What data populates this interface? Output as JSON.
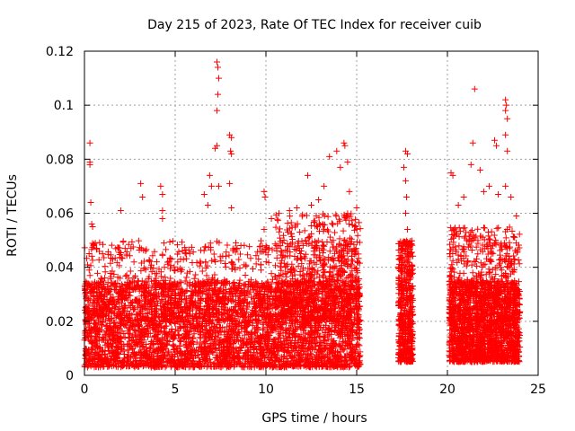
{
  "chart_data": {
    "type": "scatter",
    "title": "Day 215 of 2023, Rate Of TEC Index for receiver cuib",
    "xlabel": "GPS time / hours",
    "ylabel": "ROTI / TECUs",
    "xlim": [
      0,
      25
    ],
    "ylim": [
      0,
      0.12
    ],
    "x_ticks": [
      0,
      5,
      10,
      15,
      20,
      25
    ],
    "y_ticks": [
      0,
      0.02,
      0.04,
      0.06,
      0.08,
      0.1,
      0.12
    ],
    "x_tick_labels": [
      "0",
      "5",
      "10",
      "15",
      "20",
      "25"
    ],
    "y_tick_labels": [
      "0",
      "0.02",
      "0.04",
      "0.06",
      "0.08",
      "0.1",
      "0.12"
    ],
    "grid": true,
    "marker": "plus",
    "series_color": "#ff0000",
    "series": [
      {
        "points": [
          [
            0.3,
            0.086
          ],
          [
            0.3,
            0.079
          ],
          [
            0.3,
            0.078
          ],
          [
            0.35,
            0.064
          ],
          [
            0.4,
            0.056
          ],
          [
            0.45,
            0.055
          ],
          [
            0.5,
            0.048
          ],
          [
            1.0,
            0.045
          ],
          [
            2.0,
            0.061
          ],
          [
            3.1,
            0.071
          ],
          [
            3.2,
            0.066
          ],
          [
            4.2,
            0.07
          ],
          [
            4.3,
            0.067
          ],
          [
            4.3,
            0.061
          ],
          [
            4.3,
            0.058
          ],
          [
            5.6,
            0.045
          ],
          [
            6.6,
            0.067
          ],
          [
            6.8,
            0.063
          ],
          [
            6.9,
            0.074
          ],
          [
            7.0,
            0.07
          ],
          [
            7.3,
            0.116
          ],
          [
            7.35,
            0.114
          ],
          [
            7.4,
            0.11
          ],
          [
            7.35,
            0.104
          ],
          [
            7.3,
            0.098
          ],
          [
            7.2,
            0.084
          ],
          [
            7.3,
            0.085
          ],
          [
            7.4,
            0.07
          ],
          [
            8.0,
            0.089
          ],
          [
            8.1,
            0.088
          ],
          [
            8.05,
            0.083
          ],
          [
            8.1,
            0.082
          ],
          [
            8.0,
            0.071
          ],
          [
            8.1,
            0.062
          ],
          [
            9.9,
            0.068
          ],
          [
            9.95,
            0.066
          ],
          [
            9.9,
            0.054
          ],
          [
            10.3,
            0.058
          ],
          [
            10.6,
            0.046
          ],
          [
            11.3,
            0.061
          ],
          [
            11.7,
            0.062
          ],
          [
            12.3,
            0.074
          ],
          [
            12.5,
            0.063
          ],
          [
            12.9,
            0.065
          ],
          [
            13.2,
            0.07
          ],
          [
            13.5,
            0.081
          ],
          [
            13.9,
            0.083
          ],
          [
            14.1,
            0.077
          ],
          [
            14.3,
            0.086
          ],
          [
            14.35,
            0.085
          ],
          [
            14.5,
            0.079
          ],
          [
            14.6,
            0.068
          ],
          [
            15.0,
            0.062
          ],
          [
            17.7,
            0.083
          ],
          [
            17.8,
            0.082
          ],
          [
            17.6,
            0.077
          ],
          [
            17.7,
            0.072
          ],
          [
            17.75,
            0.066
          ],
          [
            17.7,
            0.06
          ],
          [
            17.8,
            0.054
          ],
          [
            20.2,
            0.075
          ],
          [
            20.3,
            0.074
          ],
          [
            20.6,
            0.063
          ],
          [
            20.9,
            0.066
          ],
          [
            21.3,
            0.078
          ],
          [
            21.4,
            0.086
          ],
          [
            21.5,
            0.106
          ],
          [
            21.8,
            0.076
          ],
          [
            22.0,
            0.068
          ],
          [
            22.3,
            0.07
          ],
          [
            22.6,
            0.087
          ],
          [
            22.7,
            0.085
          ],
          [
            22.8,
            0.067
          ],
          [
            23.2,
            0.102
          ],
          [
            23.25,
            0.1
          ],
          [
            23.2,
            0.098
          ],
          [
            23.3,
            0.095
          ],
          [
            23.2,
            0.089
          ],
          [
            23.3,
            0.083
          ],
          [
            23.2,
            0.07
          ],
          [
            23.5,
            0.066
          ],
          [
            23.8,
            0.059
          ]
        ],
        "clusters": [
          {
            "x_range": [
              0,
              15.2
            ],
            "y_range": [
              0.003,
              0.035
            ],
            "count": 3800
          },
          {
            "x_range": [
              0,
              15.2
            ],
            "y_range": [
              0.02,
              0.05
            ],
            "count": 900
          },
          {
            "x_range": [
              10.5,
              15.2
            ],
            "y_range": [
              0.02,
              0.06
            ],
            "count": 500
          },
          {
            "x_range": [
              17.3,
              18.1
            ],
            "y_range": [
              0.005,
              0.05
            ],
            "count": 500
          },
          {
            "x_range": [
              20.1,
              24.0
            ],
            "y_range": [
              0.005,
              0.035
            ],
            "count": 1600
          },
          {
            "x_range": [
              20.1,
              24.0
            ],
            "y_range": [
              0.02,
              0.055
            ],
            "count": 450
          }
        ]
      }
    ]
  }
}
